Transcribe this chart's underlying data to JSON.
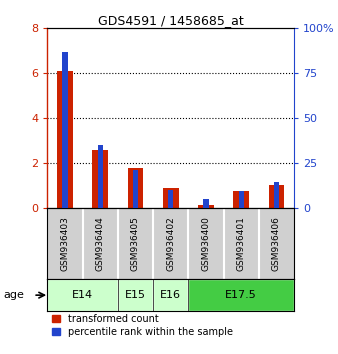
{
  "title": "GDS4591 / 1458685_at",
  "samples": [
    "GSM936403",
    "GSM936404",
    "GSM936405",
    "GSM936402",
    "GSM936400",
    "GSM936401",
    "GSM936406"
  ],
  "red_values": [
    6.1,
    2.55,
    1.75,
    0.85,
    0.12,
    0.72,
    1.0
  ],
  "blue_values": [
    87,
    35,
    21,
    10,
    5,
    9,
    14
  ],
  "age_groups": [
    {
      "label": "E14",
      "span": [
        0,
        2
      ],
      "color": "#ccffcc"
    },
    {
      "label": "E15",
      "span": [
        2,
        3
      ],
      "color": "#ccffcc"
    },
    {
      "label": "E16",
      "span": [
        3,
        4
      ],
      "color": "#ccffcc"
    },
    {
      "label": "E17.5",
      "span": [
        4,
        7
      ],
      "color": "#44cc44"
    }
  ],
  "ylim_left": [
    0,
    8
  ],
  "ylim_right": [
    0,
    100
  ],
  "yticks_left": [
    0,
    2,
    4,
    6,
    8
  ],
  "yticks_right": [
    0,
    25,
    50,
    75,
    100
  ],
  "yticklabels_right": [
    "0",
    "25",
    "50",
    "75",
    "100%"
  ],
  "red_color": "#cc2200",
  "blue_color": "#2244cc",
  "sample_bg": "#d0d0d0",
  "plot_bg": "white"
}
